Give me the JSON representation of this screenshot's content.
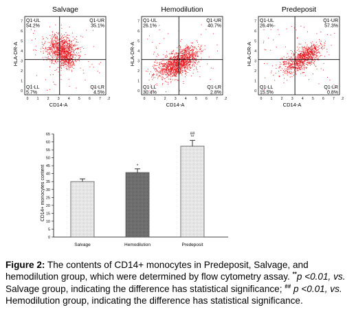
{
  "colors": {
    "dots": "#e8141c",
    "axis": "#000000",
    "bar_fill": "#ffffff",
    "bar_hatch_dark": "#6d6d6d",
    "bar_dots": "#9a9a9a"
  },
  "flow_panels": [
    {
      "title": "Salvage",
      "ylabel": "HLA-DR-A",
      "xlabel": "CD14-A",
      "quadrants": [
        {
          "label": "Q1-UL",
          "value": "54.2%"
        },
        {
          "label": "Q1-UR",
          "value": "35.1%"
        },
        {
          "label": "Q1-LL",
          "value": "5.7%"
        },
        {
          "label": "Q1-LR",
          "value": "4.5%"
        }
      ]
    },
    {
      "title": "Hemodilution",
      "ylabel": "HLA-DR-A",
      "xlabel": "CD14-A",
      "quadrants": [
        {
          "label": "Q1-UL",
          "value": "26.1%"
        },
        {
          "label": "Q1-UR",
          "value": "40.7%"
        },
        {
          "label": "Q1-LL",
          "value": "30.4%"
        },
        {
          "label": "Q1-LR",
          "value": "2.8%"
        }
      ]
    },
    {
      "title": "Predeposit",
      "ylabel": "HLA-DR-A",
      "xlabel": "CD14-A",
      "quadrants": [
        {
          "label": "Q1-UL",
          "value": "26.4%"
        },
        {
          "label": "Q1-UR",
          "value": "57.3%"
        },
        {
          "label": "Q1-LL",
          "value": "15.5%"
        },
        {
          "label": "Q1-LR",
          "value": "0.8%"
        }
      ]
    }
  ],
  "chart_data": {
    "type": "bar",
    "ylabel": "CD14+ monocytes content",
    "ylim": [
      0,
      65
    ],
    "yticks": [
      0,
      5,
      10,
      15,
      20,
      25,
      30,
      35,
      40,
      45,
      50,
      55,
      60,
      65
    ],
    "categories": [
      "Salvage",
      "Hemodilution",
      "Predeposit"
    ],
    "values": [
      35,
      40.7,
      57.3
    ],
    "errors": [
      1.7,
      2.3,
      3.7
    ],
    "markers": [
      "",
      "*",
      "##\n**"
    ]
  },
  "caption": {
    "label": "Figure 2:",
    "part1": " The contents of CD14+ monocytes in Predeposit, Salvage, and hemodilution group, which were determined by flow cytometry assay. ",
    "sig1_mark": "**",
    "sig1_p": "p <0.01, ",
    "vs1": "vs.",
    "part2": " Salvage group, indicating the difference has statistical significance; ",
    "sig2_mark": "##",
    "sig2_p": " p <0.01, ",
    "vs2": "vs.",
    "part3": " Hemodilution group, indicating the difference has statistical significance."
  }
}
